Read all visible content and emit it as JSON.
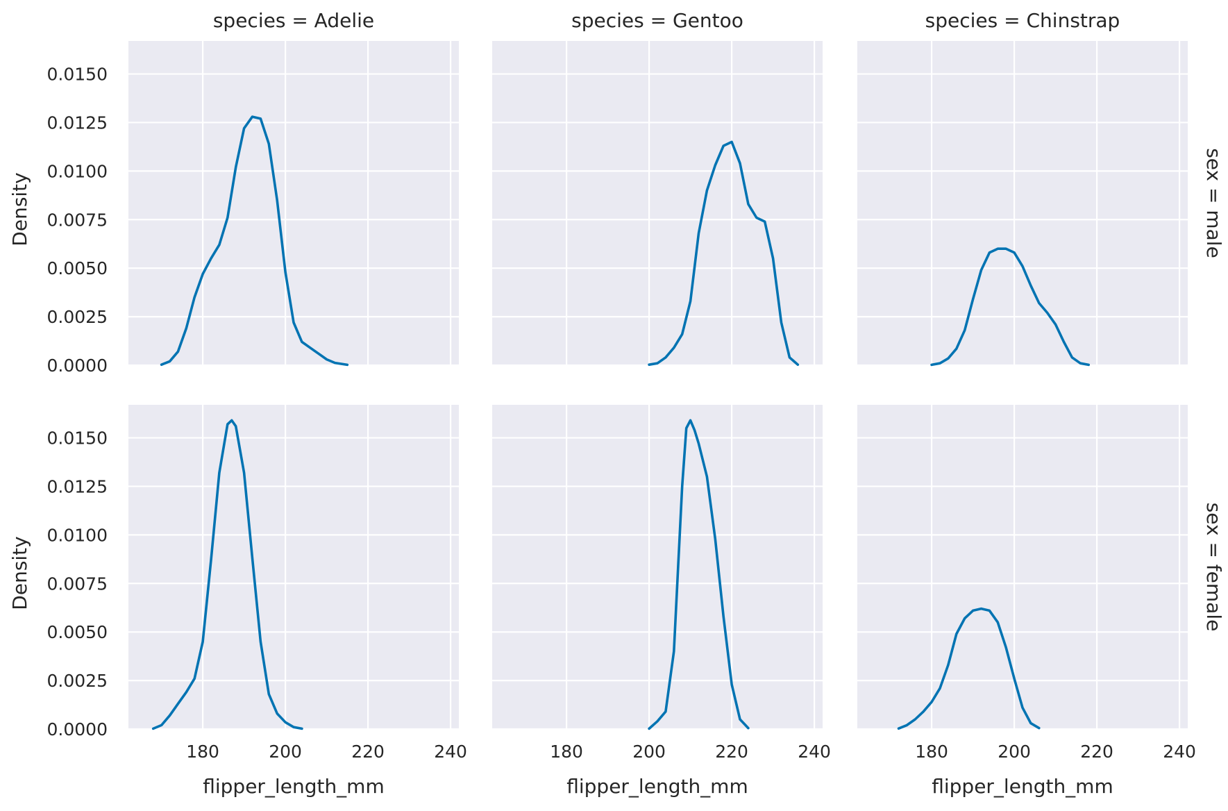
{
  "chart_data": {
    "type": "line",
    "kind": "kde-facet-grid",
    "row_var": "sex",
    "col_var": "species",
    "columns": [
      {
        "name": "Adelie",
        "title": "species = Adelie"
      },
      {
        "name": "Gentoo",
        "title": "species = Gentoo"
      },
      {
        "name": "Chinstrap",
        "title": "species = Chinstrap"
      }
    ],
    "rows": [
      {
        "name": "male",
        "title": "sex = male"
      },
      {
        "name": "female",
        "title": "sex = female"
      }
    ],
    "xlabel": "flipper_length_mm",
    "ylabel": "Density",
    "xlim": [
      162,
      242
    ],
    "ylim": [
      0,
      0.0167
    ],
    "xticks": [
      180,
      200,
      220,
      240
    ],
    "xtick_labels": [
      "180",
      "200",
      "220",
      "240"
    ],
    "yticks": [
      0,
      0.0025,
      0.005,
      0.0075,
      0.01,
      0.0125,
      0.015
    ],
    "ytick_labels": [
      "0.0000",
      "0.0025",
      "0.0050",
      "0.0075",
      "0.0100",
      "0.0125",
      "0.0150"
    ],
    "grid": true,
    "line_color": "#0173b2",
    "panel_color": "#eaeaf2",
    "series": [
      {
        "row": 0,
        "col": 0,
        "points": [
          [
            170,
            3e-05
          ],
          [
            172,
            0.0002
          ],
          [
            174,
            0.0007
          ],
          [
            176,
            0.0019
          ],
          [
            178,
            0.0035
          ],
          [
            180,
            0.0047
          ],
          [
            182,
            0.0055
          ],
          [
            184,
            0.0062
          ],
          [
            186,
            0.0076
          ],
          [
            188,
            0.0102
          ],
          [
            190,
            0.0122
          ],
          [
            192,
            0.0128
          ],
          [
            194,
            0.0127
          ],
          [
            196,
            0.0114
          ],
          [
            198,
            0.0085
          ],
          [
            200,
            0.0048
          ],
          [
            202,
            0.0022
          ],
          [
            204,
            0.0012
          ],
          [
            206,
            0.0009
          ],
          [
            208,
            0.0006
          ],
          [
            210,
            0.0003
          ],
          [
            212,
            0.00012
          ],
          [
            215,
            2e-05
          ]
        ]
      },
      {
        "row": 0,
        "col": 1,
        "points": [
          [
            200,
            3e-05
          ],
          [
            202,
            0.0001
          ],
          [
            204,
            0.0004
          ],
          [
            206,
            0.0009
          ],
          [
            208,
            0.0016
          ],
          [
            210,
            0.0033
          ],
          [
            212,
            0.0068
          ],
          [
            214,
            0.009
          ],
          [
            216,
            0.0103
          ],
          [
            218,
            0.0113
          ],
          [
            220,
            0.0115
          ],
          [
            222,
            0.0104
          ],
          [
            224,
            0.0083
          ],
          [
            226,
            0.0076
          ],
          [
            228,
            0.0074
          ],
          [
            230,
            0.0055
          ],
          [
            232,
            0.0022
          ],
          [
            234,
            0.0004
          ],
          [
            236,
            3e-05
          ]
        ]
      },
      {
        "row": 0,
        "col": 2,
        "points": [
          [
            180,
            2e-05
          ],
          [
            182,
            0.0001
          ],
          [
            184,
            0.00035
          ],
          [
            186,
            0.00085
          ],
          [
            188,
            0.0018
          ],
          [
            190,
            0.0034
          ],
          [
            192,
            0.0049
          ],
          [
            194,
            0.0058
          ],
          [
            196,
            0.006
          ],
          [
            198,
            0.006
          ],
          [
            200,
            0.0058
          ],
          [
            202,
            0.0051
          ],
          [
            204,
            0.0041
          ],
          [
            206,
            0.0032
          ],
          [
            208,
            0.0027
          ],
          [
            210,
            0.0021
          ],
          [
            212,
            0.0012
          ],
          [
            214,
            0.0004
          ],
          [
            216,
            0.0001
          ],
          [
            218,
            2e-05
          ]
        ]
      },
      {
        "row": 1,
        "col": 0,
        "points": [
          [
            168,
            2e-05
          ],
          [
            170,
            0.0002
          ],
          [
            172,
            0.0007
          ],
          [
            174,
            0.0013
          ],
          [
            176,
            0.0019
          ],
          [
            178,
            0.0026
          ],
          [
            180,
            0.0045
          ],
          [
            182,
            0.0087
          ],
          [
            184,
            0.0132
          ],
          [
            186,
            0.0157
          ],
          [
            187,
            0.0159
          ],
          [
            188,
            0.0156
          ],
          [
            190,
            0.0132
          ],
          [
            192,
            0.0088
          ],
          [
            194,
            0.0045
          ],
          [
            196,
            0.0018
          ],
          [
            198,
            0.0008
          ],
          [
            200,
            0.00035
          ],
          [
            202,
            0.0001
          ],
          [
            204,
            2e-05
          ]
        ]
      },
      {
        "row": 1,
        "col": 1,
        "points": [
          [
            200,
            2e-05
          ],
          [
            202,
            0.0004
          ],
          [
            204,
            0.0009
          ],
          [
            206,
            0.004
          ],
          [
            207,
            0.0083
          ],
          [
            208,
            0.0125
          ],
          [
            209,
            0.0155
          ],
          [
            210,
            0.0159
          ],
          [
            211,
            0.0154
          ],
          [
            212,
            0.0147
          ],
          [
            214,
            0.013
          ],
          [
            216,
            0.0098
          ],
          [
            218,
            0.0058
          ],
          [
            220,
            0.0023
          ],
          [
            222,
            0.0005
          ],
          [
            224,
            5e-05
          ]
        ]
      },
      {
        "row": 1,
        "col": 2,
        "points": [
          [
            172,
            3e-05
          ],
          [
            174,
            0.0002
          ],
          [
            176,
            0.0005
          ],
          [
            178,
            0.0009
          ],
          [
            180,
            0.0014
          ],
          [
            182,
            0.0021
          ],
          [
            184,
            0.0033
          ],
          [
            186,
            0.0049
          ],
          [
            188,
            0.0057
          ],
          [
            190,
            0.0061
          ],
          [
            192,
            0.0062
          ],
          [
            194,
            0.0061
          ],
          [
            196,
            0.0055
          ],
          [
            198,
            0.0042
          ],
          [
            200,
            0.0026
          ],
          [
            202,
            0.0011
          ],
          [
            204,
            0.0003
          ],
          [
            206,
            5e-05
          ]
        ]
      }
    ]
  }
}
